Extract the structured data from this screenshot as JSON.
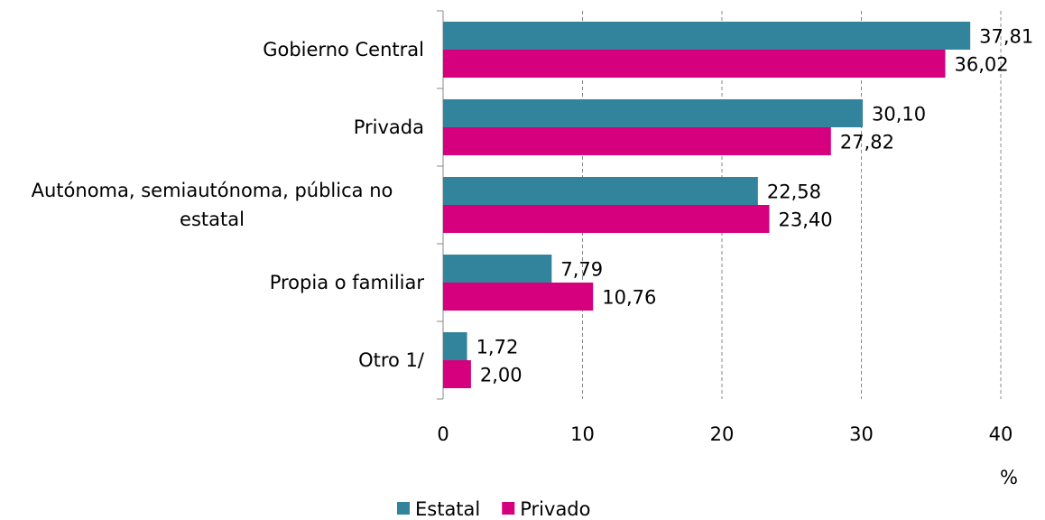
{
  "chart_data": {
    "type": "bar",
    "orientation": "horizontal",
    "categories": [
      "Gobierno Central",
      "Privada",
      "Autónoma, semiautónoma, pública no estatal",
      "Propia o familiar",
      "Otro 1/"
    ],
    "series": [
      {
        "name": "Estatal",
        "color": "#31849b",
        "values": [
          37.81,
          30.1,
          22.58,
          7.79,
          1.72
        ],
        "value_labels": [
          "37,81",
          "30,10",
          "22,58",
          "7,79",
          "1,72"
        ]
      },
      {
        "name": "Privado",
        "color": "#d6007f",
        "values": [
          36.02,
          27.82,
          23.4,
          10.76,
          2.0
        ],
        "value_labels": [
          "36,02",
          "27,82",
          "23,40",
          "10,76",
          "2,00"
        ]
      }
    ],
    "xlabel": "%",
    "xlim": [
      0,
      40
    ],
    "xticks": [
      0,
      10,
      20,
      30,
      40
    ],
    "grid": true,
    "legend": "bottom"
  }
}
